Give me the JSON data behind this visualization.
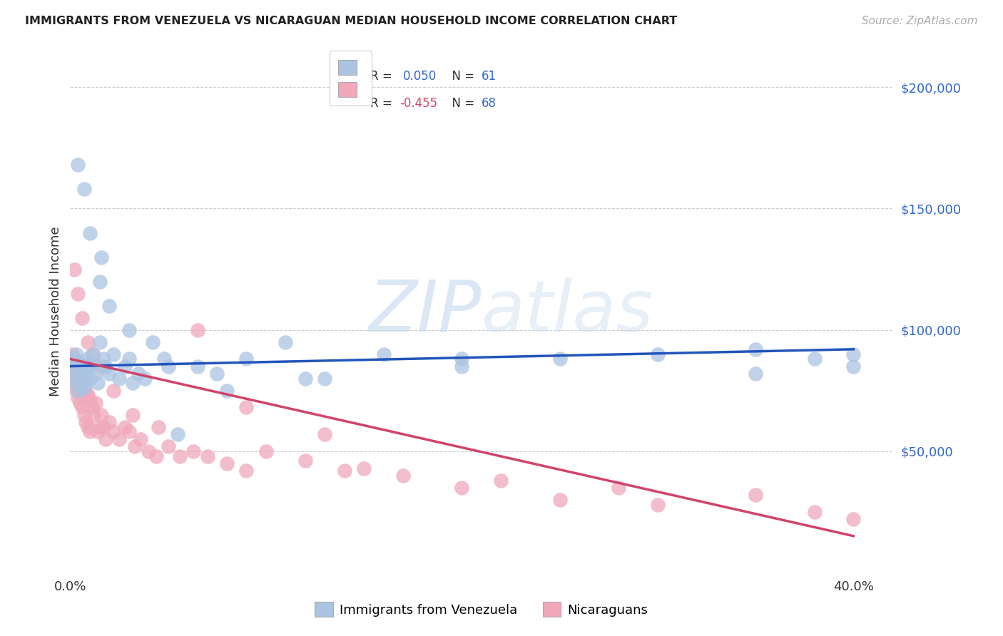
{
  "title": "IMMIGRANTS FROM VENEZUELA VS NICARAGUAN MEDIAN HOUSEHOLD INCOME CORRELATION CHART",
  "source": "Source: ZipAtlas.com",
  "ylabel": "Median Household Income",
  "y_ticks": [
    50000,
    100000,
    150000,
    200000
  ],
  "y_tick_labels": [
    "$50,000",
    "$100,000",
    "$150,000",
    "$200,000"
  ],
  "ylim": [
    0,
    215000
  ],
  "xlim": [
    0.0,
    0.42
  ],
  "blue_color": "#aac4e2",
  "pink_color": "#f0a8ba",
  "blue_line_color": "#2255bb",
  "pink_line_color": "#d04468",
  "R_blue": 0.05,
  "N_blue": 61,
  "R_pink": -0.455,
  "N_pink": 68,
  "blue_line_y0": 85000,
  "blue_line_y1": 92000,
  "pink_line_y0": 88000,
  "pink_line_y1": 15000,
  "blue_scatter_x": [
    0.001,
    0.002,
    0.002,
    0.003,
    0.003,
    0.004,
    0.004,
    0.005,
    0.005,
    0.006,
    0.006,
    0.007,
    0.007,
    0.008,
    0.008,
    0.009,
    0.01,
    0.01,
    0.011,
    0.012,
    0.013,
    0.014,
    0.015,
    0.016,
    0.017,
    0.018,
    0.02,
    0.022,
    0.025,
    0.028,
    0.03,
    0.032,
    0.035,
    0.038,
    0.042,
    0.048,
    0.055,
    0.065,
    0.075,
    0.09,
    0.11,
    0.13,
    0.16,
    0.2,
    0.25,
    0.3,
    0.35,
    0.38,
    0.4,
    0.4,
    0.004,
    0.007,
    0.01,
    0.015,
    0.02,
    0.03,
    0.05,
    0.08,
    0.12,
    0.2,
    0.35
  ],
  "blue_scatter_y": [
    88000,
    85000,
    82000,
    90000,
    78000,
    87000,
    75000,
    84000,
    80000,
    86000,
    78000,
    84000,
    76000,
    82000,
    79000,
    88000,
    85000,
    80000,
    90000,
    86000,
    82000,
    78000,
    95000,
    130000,
    88000,
    85000,
    82000,
    90000,
    80000,
    85000,
    88000,
    78000,
    82000,
    80000,
    95000,
    88000,
    57000,
    85000,
    82000,
    88000,
    95000,
    80000,
    90000,
    88000,
    88000,
    90000,
    92000,
    88000,
    90000,
    85000,
    168000,
    158000,
    140000,
    120000,
    110000,
    100000,
    85000,
    75000,
    80000,
    85000,
    82000
  ],
  "pink_scatter_x": [
    0.001,
    0.001,
    0.002,
    0.002,
    0.003,
    0.003,
    0.004,
    0.004,
    0.005,
    0.005,
    0.006,
    0.006,
    0.007,
    0.007,
    0.008,
    0.008,
    0.009,
    0.009,
    0.01,
    0.01,
    0.011,
    0.012,
    0.013,
    0.014,
    0.015,
    0.016,
    0.017,
    0.018,
    0.02,
    0.022,
    0.025,
    0.028,
    0.03,
    0.033,
    0.036,
    0.04,
    0.044,
    0.05,
    0.056,
    0.063,
    0.07,
    0.08,
    0.09,
    0.1,
    0.12,
    0.14,
    0.17,
    0.22,
    0.28,
    0.35,
    0.002,
    0.004,
    0.006,
    0.009,
    0.012,
    0.016,
    0.022,
    0.032,
    0.045,
    0.065,
    0.09,
    0.13,
    0.2,
    0.3,
    0.38,
    0.4,
    0.25,
    0.15
  ],
  "pink_scatter_y": [
    90000,
    82000,
    88000,
    78000,
    86000,
    75000,
    84000,
    72000,
    82000,
    70000,
    80000,
    68000,
    78000,
    65000,
    75000,
    62000,
    73000,
    60000,
    71000,
    58000,
    68000,
    65000,
    70000,
    58000,
    60000,
    65000,
    60000,
    55000,
    62000,
    58000,
    55000,
    60000,
    58000,
    52000,
    55000,
    50000,
    48000,
    52000,
    48000,
    50000,
    48000,
    45000,
    42000,
    50000,
    46000,
    42000,
    40000,
    38000,
    35000,
    32000,
    125000,
    115000,
    105000,
    95000,
    90000,
    85000,
    75000,
    65000,
    60000,
    100000,
    68000,
    57000,
    35000,
    28000,
    25000,
    22000,
    30000,
    43000
  ]
}
